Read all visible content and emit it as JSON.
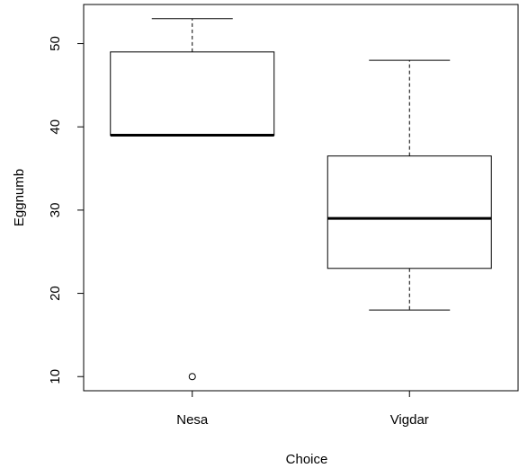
{
  "chart_data": {
    "type": "boxplot",
    "xlabel": "Choice",
    "ylabel": "Eggnumb",
    "ylim": [
      8.3,
      54.7
    ],
    "yticks": [
      10,
      20,
      30,
      40,
      50
    ],
    "categories": [
      "Nesa",
      "Vigdar"
    ],
    "boxes": [
      {
        "category": "Nesa",
        "whisker_low": 39,
        "q1": 39,
        "median": 39,
        "q3": 49,
        "whisker_high": 53,
        "outliers": [
          10
        ]
      },
      {
        "category": "Vigdar",
        "whisker_low": 18,
        "q1": 23,
        "median": 29,
        "q3": 36.5,
        "whisker_high": 48,
        "outliers": []
      }
    ]
  }
}
